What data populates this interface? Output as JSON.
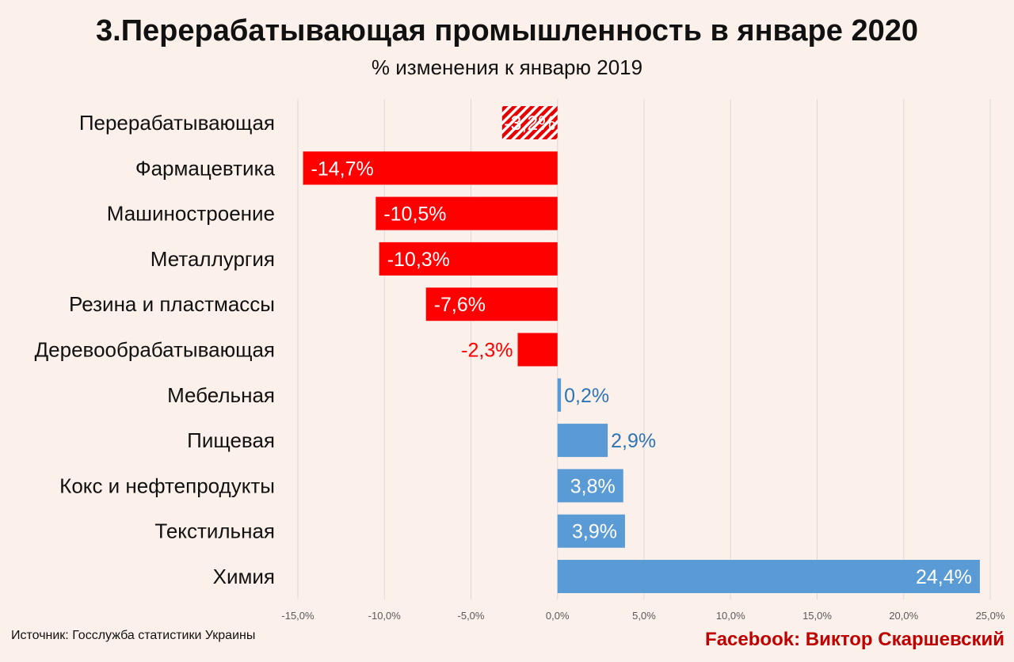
{
  "header": {
    "title": "3.Перерабатывающая промышленность в январе 2020",
    "subtitle": "% изменения к январю 2019"
  },
  "footer": {
    "source": "Источник: Госслужба статистики Украины",
    "credit": "Facebook: Виктор Скаршевский"
  },
  "colors": {
    "negative": "#ff0000",
    "positive": "#5b9bd5",
    "negative_label": "#ff0000",
    "positive_label": "#2e75b6",
    "total_hatch": "#e60000",
    "grid": "#d9d9d9"
  },
  "chart_data": {
    "type": "bar",
    "orientation": "horizontal",
    "title": "3.Перерабатывающая промышленность в январе 2020",
    "subtitle": "% изменения к январю 2019",
    "categories": [
      "Перерабатывающая",
      "Фармацевтика",
      "Машиностроение",
      "Металлургия",
      "Резина и пластмассы",
      "Деревообрабатывающая",
      "Мебельная",
      "Пищевая",
      "Кокс и нефтепродукты",
      "Текстильная",
      "Химия"
    ],
    "values": [
      -3.2,
      -14.7,
      -10.5,
      -10.3,
      -7.6,
      -2.3,
      0.2,
      2.9,
      3.8,
      3.9,
      24.4
    ],
    "data_labels": [
      "-3,2%",
      "-14,7%",
      "-10,5%",
      "-10,3%",
      "-7,6%",
      "-2,3%",
      "0,2%",
      "2,9%",
      "3,8%",
      "3,9%",
      "24,4%"
    ],
    "hatched": [
      true,
      false,
      false,
      false,
      false,
      false,
      false,
      false,
      false,
      false,
      false
    ],
    "xlim": [
      -15,
      25
    ],
    "xticks": [
      -15,
      -10,
      -5,
      0,
      5,
      10,
      15,
      20,
      25
    ],
    "xtick_labels": [
      "-15,0%",
      "-10,0%",
      "-5,0%",
      "0,0%",
      "5,0%",
      "10,0%",
      "15,0%",
      "20,0%",
      "25,0%"
    ],
    "grid": true,
    "legend": "none"
  }
}
